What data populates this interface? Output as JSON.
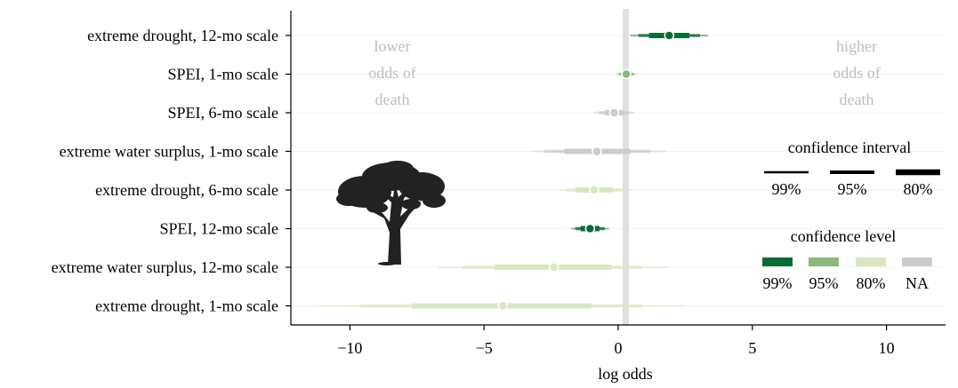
{
  "chart_data": {
    "type": "forest",
    "xlabel": "log odds",
    "xlim": [
      -12.2,
      12.2
    ],
    "x_ticks": [
      -10,
      -5,
      0,
      5,
      10
    ],
    "x_tick_labels": [
      "−10",
      "−5",
      "0",
      "5",
      "10"
    ],
    "reference_line": 0,
    "rows": [
      {
        "label": "extreme drought, 12-mo scale",
        "estimate": 1.9,
        "ci80": [
          1.15,
          2.65
        ],
        "ci95": [
          0.75,
          3.05
        ],
        "ci99": [
          0.45,
          3.35
        ],
        "confidence_level": "99%"
      },
      {
        "label": "SPEI, 1-mo scale",
        "estimate": 0.3,
        "ci80": [
          0.12,
          0.48
        ],
        "ci95": [
          0.02,
          0.58
        ],
        "ci99": [
          -0.08,
          0.68
        ],
        "confidence_level": "95%"
      },
      {
        "label": "SPEI, 6-mo scale",
        "estimate": -0.15,
        "ci80": [
          -0.5,
          0.2
        ],
        "ci95": [
          -0.72,
          0.42
        ],
        "ci99": [
          -0.9,
          0.6
        ],
        "confidence_level": "NA"
      },
      {
        "label": "extreme water surplus, 1-mo scale",
        "estimate": -0.8,
        "ci80": [
          -2.0,
          0.45
        ],
        "ci95": [
          -2.75,
          1.2
        ],
        "ci99": [
          -3.2,
          1.8
        ],
        "confidence_level": "NA"
      },
      {
        "label": "extreme drought, 6-mo scale",
        "estimate": -0.9,
        "ci80": [
          -1.6,
          -0.2
        ],
        "ci95": [
          -1.95,
          0.2
        ],
        "ci99": [
          -2.2,
          0.5
        ],
        "confidence_level": "80%"
      },
      {
        "label": "SPEI, 12-mo scale",
        "estimate": -1.05,
        "ci80": [
          -1.4,
          -0.7
        ],
        "ci95": [
          -1.6,
          -0.5
        ],
        "ci99": [
          -1.75,
          -0.35
        ],
        "confidence_level": "99%"
      },
      {
        "label": "extreme water surplus, 12-mo scale",
        "estimate": -2.4,
        "ci80": [
          -4.6,
          -0.25
        ],
        "ci95": [
          -5.8,
          0.9
        ],
        "ci99": [
          -6.7,
          1.9
        ],
        "confidence_level": "80%"
      },
      {
        "label": "extreme drought, 1-mo scale",
        "estimate": -4.3,
        "ci80": [
          -7.7,
          -1.0
        ],
        "ci95": [
          -9.6,
          0.9
        ],
        "ci99": [
          -11.2,
          2.5
        ],
        "confidence_level": "80%"
      }
    ],
    "annotations": {
      "left": [
        "lower",
        "odds of",
        "death"
      ],
      "right": [
        "higher",
        "odds of",
        "death"
      ]
    },
    "legend_ci": {
      "title": "confidence interval",
      "items": [
        "99%",
        "95%",
        "80%"
      ]
    },
    "legend_level": {
      "title": "confidence level",
      "items": [
        "99%",
        "95%",
        "80%",
        "NA"
      ]
    },
    "colors": {
      "99%": "#0a6b36",
      "95%": "#8cb87d",
      "80%": "#d9e7c1",
      "NA": "#cccccc",
      "axis": "#000000",
      "zero_line": "#e0e0e0",
      "annotation": "#bdbdbd",
      "tree": "#222222"
    },
    "icon": "tree-silhouette-icon"
  }
}
